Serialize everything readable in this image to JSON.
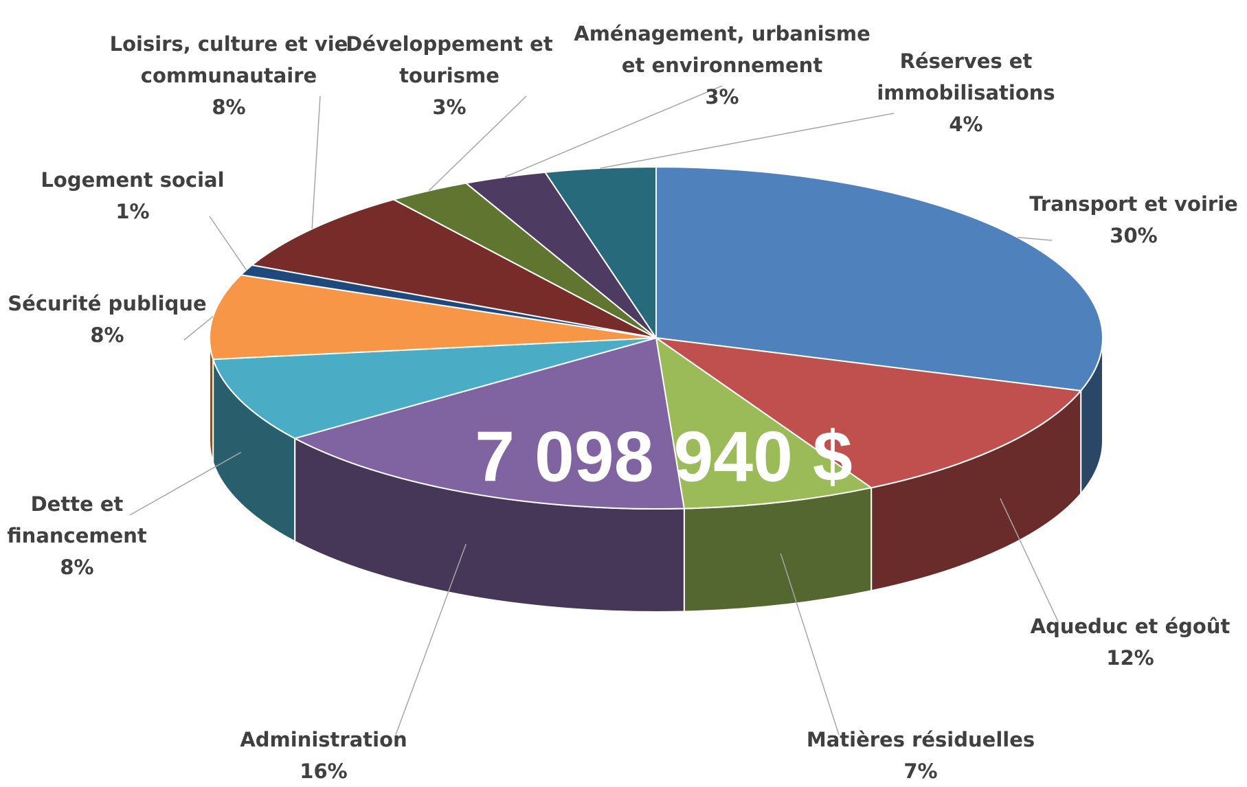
{
  "chart_data": {
    "type": "pie",
    "annotation": "7 098 940 $",
    "categories": [
      "Transport et voirie",
      "Aqueduc et égoût",
      "Matières résiduelles",
      "Administration",
      "Dette et financement",
      "Sécurité publique",
      "Logement social",
      "Loisirs, culture et vie communautaire",
      "Développement et tourisme",
      "Aménagement, urbanisme et environnement",
      "Réserves et immobilisations"
    ],
    "values": [
      30,
      12,
      7,
      16,
      8,
      8,
      1,
      8,
      3,
      3,
      4
    ],
    "value_labels": [
      "30%",
      "12%",
      "7%",
      "16%",
      "8%",
      "8%",
      "1%",
      "8%",
      "3%",
      "3%",
      "4%"
    ],
    "colors": [
      "#4f81bd",
      "#c0504d",
      "#9bbb59",
      "#8064a2",
      "#4bacc6",
      "#f79646",
      "#1f497d",
      "#772c2a",
      "#5f7530",
      "#4d3b62",
      "#276a7c"
    ]
  }
}
